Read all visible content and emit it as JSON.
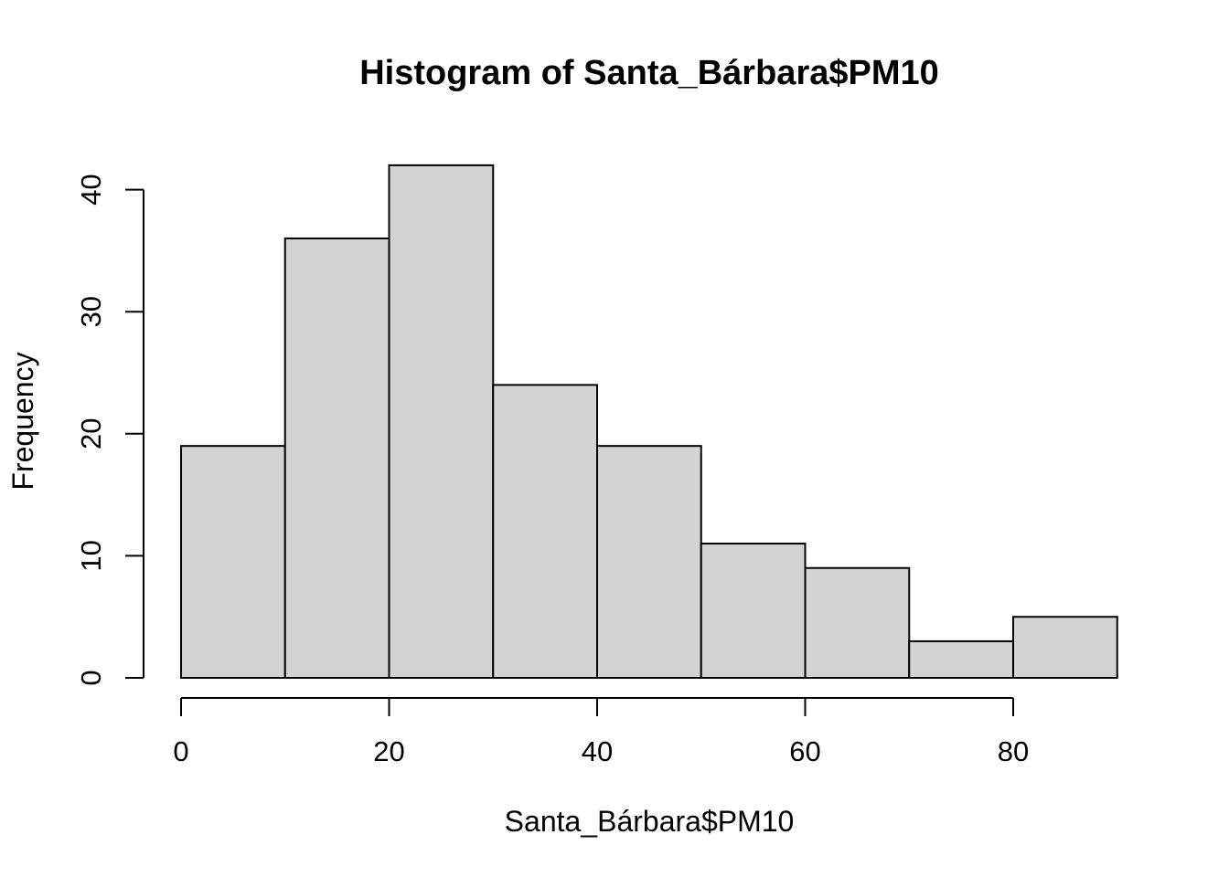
{
  "chart_data": {
    "type": "bar",
    "title": "Histogram of Santa_Bárbara$PM10",
    "xlabel": "Santa_Bárbara$PM10",
    "ylabel": "Frequency",
    "bins": [
      {
        "from": 0,
        "to": 10,
        "count": 19
      },
      {
        "from": 10,
        "to": 20,
        "count": 36
      },
      {
        "from": 20,
        "to": 30,
        "count": 42
      },
      {
        "from": 30,
        "to": 40,
        "count": 24
      },
      {
        "from": 40,
        "to": 50,
        "count": 19
      },
      {
        "from": 50,
        "to": 60,
        "count": 11
      },
      {
        "from": 60,
        "to": 70,
        "count": 9
      },
      {
        "from": 70,
        "to": 80,
        "count": 3
      },
      {
        "from": 80,
        "to": 90,
        "count": 5
      }
    ],
    "xlim": [
      0,
      90
    ],
    "ylim": [
      0,
      42
    ],
    "xticks": [
      0,
      20,
      40,
      60,
      80
    ],
    "xtick_labels": [
      "0",
      "20",
      "40",
      "60",
      "80"
    ],
    "yticks": [
      0,
      10,
      20,
      30,
      40
    ],
    "ytick_labels": [
      "0",
      "10",
      "20",
      "30",
      "40"
    ],
    "bar_fill": "#d3d3d3",
    "bar_border": "#000000",
    "grid": false,
    "legend": "none"
  }
}
